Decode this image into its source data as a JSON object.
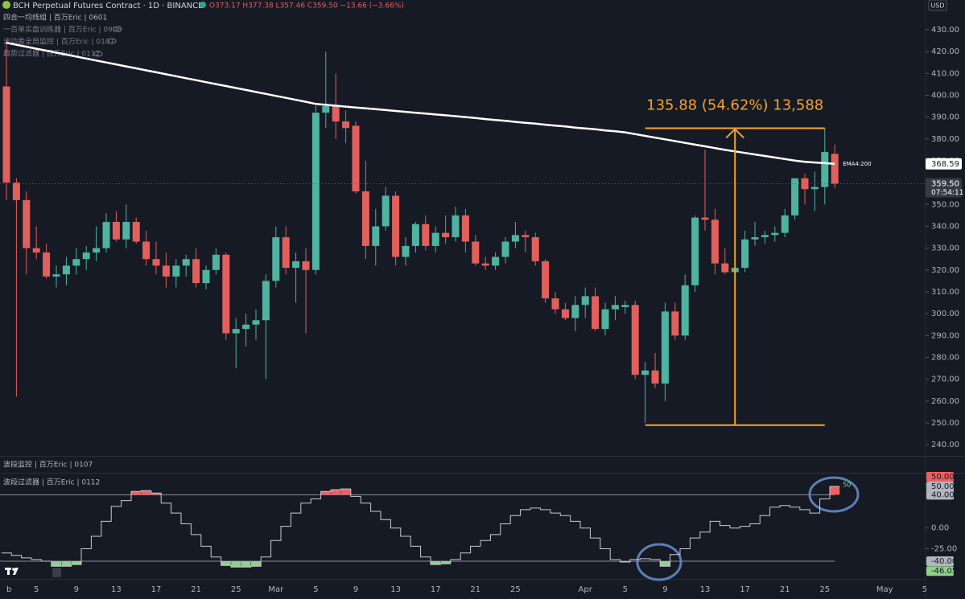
{
  "chart_data": [
    {
      "type": "candlestick",
      "title": "BCH Perpetual Futures Contract · 1D · BINANCE",
      "ohlc_text": "O373.17 H377.38 L357.46 C359.50 −13.66 (−3.66%)",
      "indicators": [
        "四合一均线组 | 百万Eric | 0601",
        "一百单实盘训练器 | 百万Eric | 0906",
        "波动差全局监控 | 百万Eric | 0107",
        "趋势过滤器 | 百万Eric | 0112"
      ],
      "currency": "USD",
      "up_color": "#4fb3a2",
      "down_color": "#e2605c",
      "categories": [
        "b",
        null,
        null,
        "5",
        null,
        null,
        null,
        "9",
        null,
        null,
        null,
        "13",
        null,
        null,
        null,
        "17",
        null,
        null,
        null,
        "21",
        null,
        null,
        null,
        "25",
        null,
        null,
        null,
        "Mar",
        null,
        null,
        null,
        "5",
        null,
        null,
        null,
        "9",
        null,
        null,
        null,
        "13",
        null,
        null,
        null,
        "17",
        null,
        null,
        null,
        "21",
        null,
        null,
        null,
        "25",
        null,
        null,
        null,
        null,
        null,
        null,
        "Apr",
        null,
        null,
        null,
        "5",
        null,
        null,
        null,
        "9",
        null,
        null,
        null,
        "13",
        null,
        null,
        null,
        "17",
        null,
        null,
        null,
        "21",
        null,
        null,
        null,
        "25",
        null,
        null,
        null,
        null,
        null,
        "May",
        null,
        null,
        null,
        "5"
      ],
      "open": [
        404,
        360,
        352,
        330,
        328,
        317,
        318,
        322,
        325,
        328,
        330,
        342,
        334,
        342,
        333,
        325,
        322,
        317,
        322,
        325,
        314,
        320,
        327,
        291,
        293,
        295,
        297,
        315,
        335,
        321,
        324,
        320,
        392,
        395,
        388,
        386,
        356,
        331,
        340,
        354,
        326,
        331,
        341,
        331,
        337,
        335,
        345,
        333,
        323,
        322,
        326,
        333,
        336,
        335,
        324,
        307,
        302,
        298,
        304,
        308,
        293,
        302,
        303,
        304,
        272,
        274,
        268,
        301,
        290,
        313,
        344,
        343,
        323,
        319,
        321,
        334,
        335,
        336,
        337,
        345,
        362,
        357,
        358,
        373.17,
        null,
        null,
        null,
        null,
        null,
        null,
        null,
        null,
        null
      ],
      "high": [
        425,
        362,
        356,
        340,
        332,
        322,
        326,
        330,
        331,
        340,
        346,
        347,
        350,
        344,
        338,
        333,
        328,
        325,
        327,
        330,
        322,
        330,
        328,
        298,
        300,
        302,
        318,
        340,
        340,
        328,
        330,
        395,
        420,
        410,
        393,
        388,
        370,
        348,
        358,
        356,
        335,
        342,
        345,
        340,
        345,
        349,
        348,
        336,
        326,
        328,
        335,
        342,
        338,
        337,
        325,
        310,
        305,
        308,
        312,
        312,
        305,
        308,
        306,
        306,
        278,
        282,
        305,
        305,
        318,
        345,
        375,
        348,
        330,
        328,
        338,
        342,
        338,
        340,
        348,
        362,
        364,
        365,
        385,
        377.38,
        null,
        null,
        null,
        null,
        null,
        null,
        null,
        null,
        null
      ],
      "low": [
        352,
        262,
        318,
        325,
        316,
        312,
        313,
        318,
        320,
        324,
        328,
        333,
        330,
        332,
        322,
        318,
        312,
        312,
        317,
        312,
        311,
        318,
        288,
        275,
        285,
        288,
        270,
        312,
        318,
        305,
        291,
        318,
        385,
        380,
        378,
        355,
        325,
        322,
        338,
        322,
        322,
        328,
        329,
        328,
        332,
        333,
        328,
        322,
        320,
        320,
        323,
        330,
        328,
        322,
        305,
        300,
        297,
        292,
        298,
        292,
        290,
        297,
        300,
        270,
        250,
        266,
        260,
        288,
        288,
        310,
        338,
        318,
        318,
        316,
        319,
        331,
        332,
        333,
        335,
        343,
        350,
        347,
        350,
        357.46,
        null,
        null,
        null,
        null,
        null,
        null,
        null,
        null,
        null
      ],
      "close": [
        360,
        352,
        330,
        328,
        317,
        318,
        322,
        325,
        328,
        330,
        342,
        334,
        342,
        333,
        325,
        322,
        317,
        322,
        325,
        314,
        320,
        327,
        291,
        293,
        295,
        297,
        315,
        335,
        321,
        324,
        320,
        392,
        395,
        388,
        385,
        356,
        331,
        340,
        354,
        326,
        331,
        341,
        331,
        337,
        335,
        345,
        333,
        323,
        322,
        326,
        333,
        336,
        335,
        324,
        307,
        302,
        298,
        304,
        308,
        293,
        302,
        304,
        304,
        272,
        274,
        268,
        301,
        290,
        313,
        344,
        343,
        323,
        319,
        321,
        334,
        335,
        336,
        337,
        345,
        362,
        357,
        358,
        374,
        359.5,
        null,
        null,
        null,
        null,
        null,
        null,
        null,
        null,
        null
      ],
      "close_label": "359.50",
      "countdown": "07:54:11",
      "series": [
        {
          "name": "EMA4:200",
          "color": "#ffffff",
          "last_label": "368.59",
          "values": [
            424,
            423.1,
            422.2,
            421.3,
            420.4,
            419.5,
            418.6,
            417.7,
            416.8,
            415.9,
            415,
            414.1,
            413.2,
            412.3,
            411.4,
            410.5,
            409.6,
            408.7,
            407.8,
            406.9,
            406,
            405.1,
            404.2,
            403.3,
            402.4,
            401.5,
            400.6,
            399.7,
            398.8,
            397.9,
            397,
            396,
            395.6,
            395.2,
            394.8,
            394.4,
            394,
            393.6,
            393.2,
            392.8,
            392.4,
            392,
            391.6,
            391.2,
            390.8,
            390.4,
            390,
            389.6,
            389.1,
            388.7,
            388.3,
            387.8,
            387.4,
            387,
            386.5,
            386.1,
            385.7,
            385.2,
            384.8,
            384.4,
            383.9,
            383.5,
            383,
            382.2,
            381.4,
            380.6,
            379.8,
            379,
            378.2,
            377.4,
            376.6,
            375.8,
            375,
            374.3,
            373.6,
            372.9,
            372.2,
            371.5,
            370.8,
            370.1,
            369.5,
            369.2,
            368.9,
            368.59,
            null,
            null,
            null,
            null,
            null,
            null,
            null,
            null,
            null
          ]
        }
      ],
      "measure": {
        "low": 249,
        "high": 384.88,
        "from": 64,
        "to": 82,
        "label": "135.88 (54.62%) 13,588",
        "color": "#f0a431"
      },
      "ylim": [
        234.9,
        443.6
      ],
      "yticks": [
        {
          "value": 240,
          "label": "240.00"
        },
        {
          "value": 250,
          "label": "250.00"
        },
        {
          "value": 260,
          "label": "260.00"
        },
        {
          "value": 270,
          "label": "270.00"
        },
        {
          "value": 280,
          "label": "280.00"
        },
        {
          "value": 290,
          "label": "290.00"
        },
        {
          "value": 300,
          "label": "300.00"
        },
        {
          "value": 310,
          "label": "310.00"
        },
        {
          "value": 320,
          "label": "320.00"
        },
        {
          "value": 330,
          "label": "330.00"
        },
        {
          "value": 340,
          "label": "340.00"
        },
        {
          "value": 350,
          "label": "350.00"
        },
        {
          "value": 360,
          "label": "360.00"
        },
        {
          "value": 370,
          "label": "370.00"
        },
        {
          "value": 380,
          "label": "380.00"
        },
        {
          "value": 390,
          "label": "390.00"
        },
        {
          "value": 400,
          "label": "400.00"
        },
        {
          "value": 410,
          "label": "410.00"
        },
        {
          "value": 420,
          "label": "420.00"
        },
        {
          "value": 430,
          "label": "430.00"
        }
      ]
    },
    {
      "type": "line",
      "titles": [
        "波段监控 | 百万Eric | 0107",
        "波段过滤器 | 百万Eric | 0112"
      ],
      "color": "#c9cbd1",
      "high_color": "#ef5f5f",
      "low_color": "#8fd08a",
      "upper_band": 40,
      "lower_band": -40,
      "values": [
        -30,
        -33,
        -36,
        -38,
        -40,
        -46,
        -46,
        -44,
        -25,
        -10,
        8,
        26,
        33,
        44,
        45,
        42,
        30,
        18,
        5,
        -8,
        -22,
        -35,
        -45,
        -47,
        -47,
        -46,
        -35,
        -15,
        2,
        18,
        30,
        35,
        44,
        46,
        47,
        38,
        30,
        20,
        10,
        0,
        -10,
        -22,
        -35,
        -44,
        -43,
        -38,
        -30,
        -22,
        -15,
        -8,
        5,
        15,
        22,
        24,
        22,
        18,
        15,
        8,
        0,
        -12,
        -25,
        -38,
        -41,
        -38,
        -37,
        -38,
        -46,
        -32,
        -25,
        -12,
        -5,
        8,
        3,
        0,
        2,
        5,
        15,
        25,
        27,
        25,
        22,
        18,
        35,
        50,
        null,
        null,
        null,
        null,
        null,
        null,
        null,
        null,
        null
      ],
      "last_value_label": "50",
      "markers": [
        {
          "value": 50,
          "label": "50.00",
          "color": "#ef5f5f"
        },
        {
          "value": -46.05,
          "label": "-46.05",
          "color": "#8fd08a"
        }
      ],
      "ylim": [
        -58.4,
        64.5
      ],
      "yticks": [
        {
          "value": 50,
          "label": "50.00"
        },
        {
          "value": 40,
          "label": "40.00"
        },
        {
          "value": 0,
          "label": "0.00"
        },
        {
          "value": -25,
          "label": "-25.00"
        },
        {
          "value": -40,
          "label": "-40.00"
        }
      ]
    }
  ]
}
